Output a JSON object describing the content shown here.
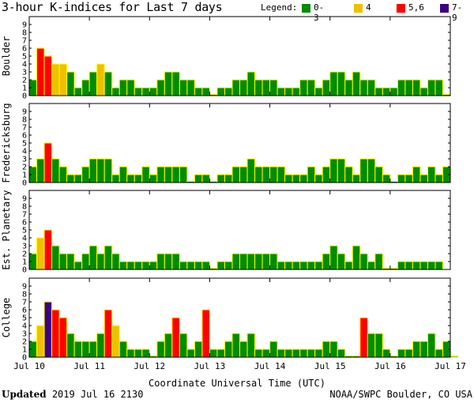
{
  "title": "3-hour K-indices for Last 7 days",
  "legend": {
    "label": "Legend:",
    "items": [
      {
        "label": "0-3",
        "color": "#008c00"
      },
      {
        "label": "4",
        "color": "#f0c000"
      },
      {
        "label": "5,6",
        "color": "#ff0000"
      },
      {
        "label": "7-9",
        "color": "#3c0080"
      }
    ]
  },
  "footer": {
    "updated_label": "Updated",
    "updated_value": "2019 Jul 16 2130",
    "credit": "NOAA/SWPC Boulder, CO USA"
  },
  "chart_data": {
    "type": "bar",
    "xlabel": "Coordinate Universal Time (UTC)",
    "x_ticks": [
      "Jul 10",
      "Jul 11",
      "Jul 12",
      "Jul 13",
      "Jul 14",
      "Jul 15",
      "Jul 16",
      "Jul 17"
    ],
    "ylim": [
      0,
      9
    ],
    "y_ticks": [
      0,
      1,
      2,
      3,
      4,
      5,
      6,
      7,
      8,
      9
    ],
    "bar_outline_color": "#ffff00",
    "color_bins": [
      {
        "range": [
          0,
          3
        ],
        "color": "#008c00"
      },
      {
        "range": [
          4,
          4
        ],
        "color": "#f0c000"
      },
      {
        "range": [
          5,
          6
        ],
        "color": "#ff0000"
      },
      {
        "range": [
          7,
          9
        ],
        "color": "#3c0080"
      }
    ],
    "panels": [
      {
        "name": "Boulder",
        "values": [
          2,
          6,
          5,
          4,
          4,
          3,
          1,
          2,
          3,
          4,
          3,
          1,
          2,
          2,
          1,
          1,
          1,
          2,
          3,
          3,
          2,
          2,
          1,
          1,
          0,
          1,
          1,
          2,
          2,
          3,
          2,
          2,
          2,
          1,
          1,
          1,
          2,
          2,
          1,
          2,
          3,
          3,
          2,
          3,
          2,
          2,
          1,
          1,
          1,
          2,
          2,
          2,
          1,
          2,
          2,
          0
        ]
      },
      {
        "name": "Fredericksburg",
        "values": [
          2,
          3,
          5,
          3,
          2,
          1,
          1,
          2,
          3,
          3,
          3,
          1,
          2,
          1,
          1,
          2,
          1,
          2,
          2,
          2,
          2,
          0,
          1,
          1,
          0,
          1,
          1,
          2,
          2,
          3,
          2,
          2,
          2,
          2,
          1,
          1,
          1,
          2,
          1,
          2,
          3,
          3,
          2,
          1,
          3,
          3,
          2,
          1,
          0,
          1,
          1,
          2,
          1,
          2,
          1,
          2
        ]
      },
      {
        "name": "Est. Planetary",
        "values": [
          2,
          4,
          5,
          3,
          2,
          2,
          1,
          2,
          3,
          2,
          3,
          2,
          1,
          1,
          1,
          1,
          1,
          2,
          2,
          2,
          1,
          1,
          1,
          1,
          0,
          1,
          1,
          2,
          2,
          2,
          2,
          2,
          2,
          1,
          1,
          1,
          1,
          1,
          1,
          2,
          3,
          2,
          1,
          3,
          2,
          1,
          2,
          0,
          0,
          1,
          1,
          1,
          1,
          1,
          1
        ]
      },
      {
        "name": "College",
        "values": [
          2,
          4,
          7,
          6,
          5,
          3,
          2,
          2,
          2,
          3,
          6,
          4,
          2,
          1,
          1,
          1,
          0,
          2,
          3,
          5,
          3,
          1,
          2,
          6,
          1,
          1,
          2,
          3,
          2,
          3,
          1,
          1,
          2,
          1,
          1,
          1,
          1,
          1,
          1,
          2,
          2,
          1,
          0,
          0,
          5,
          3,
          3,
          1,
          0,
          1,
          1,
          2,
          2,
          3,
          1,
          2,
          0
        ]
      }
    ]
  }
}
